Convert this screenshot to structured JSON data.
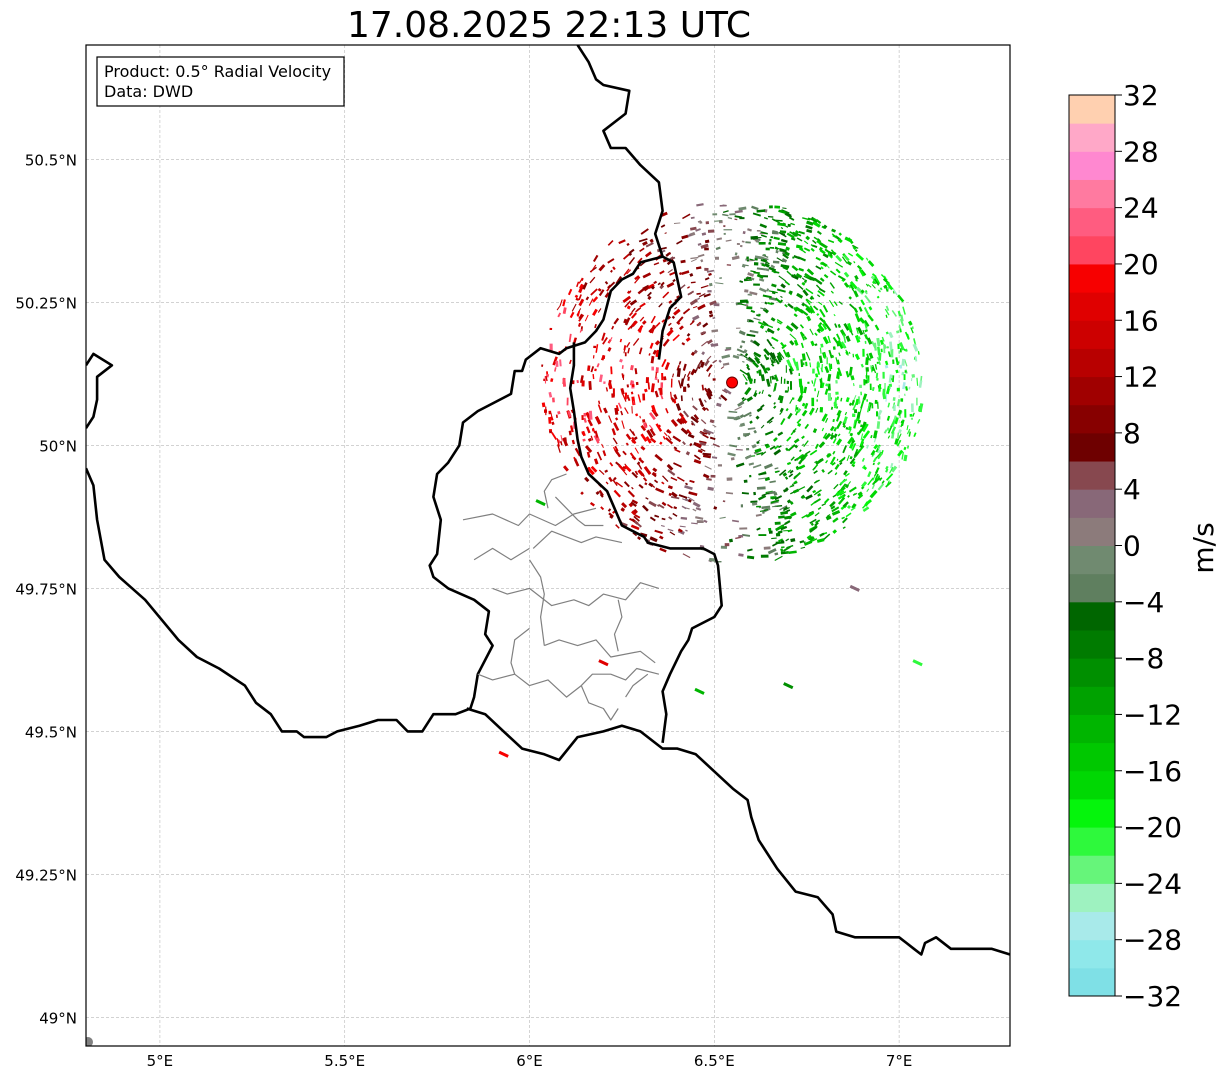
{
  "title": "17.08.2025 22:13 UTC",
  "info_box": {
    "line1": "Product: 0.5° Radial Velocity",
    "line2": "Data: DWD"
  },
  "map": {
    "lon_range": [
      4.8,
      7.3
    ],
    "lat_range": [
      48.95,
      50.7
    ],
    "lon_ticks": [
      {
        "value": 5.0,
        "label": "5°E"
      },
      {
        "value": 5.5,
        "label": "5.5°E"
      },
      {
        "value": 6.0,
        "label": "6°E"
      },
      {
        "value": 6.5,
        "label": "6.5°E"
      },
      {
        "value": 7.0,
        "label": "7°E"
      }
    ],
    "lat_ticks": [
      {
        "value": 50.5,
        "label": "50.5°N"
      },
      {
        "value": 50.25,
        "label": "50.25°N"
      },
      {
        "value": 50.0,
        "label": "50°N"
      },
      {
        "value": 49.75,
        "label": "49.75°N"
      },
      {
        "value": 49.5,
        "label": "49.5°N"
      },
      {
        "value": 49.25,
        "label": "49.25°N"
      },
      {
        "value": 49.0,
        "label": "49°N"
      }
    ],
    "grid": true,
    "radar_site": {
      "lon": 6.548,
      "lat": 50.11
    },
    "borders": [
      [
        [
          6.13,
          50.7
        ],
        [
          6.16,
          50.67
        ],
        [
          6.18,
          50.64
        ],
        [
          6.2,
          50.63
        ],
        [
          6.27,
          50.62
        ],
        [
          6.26,
          50.58
        ],
        [
          6.2,
          50.55
        ],
        [
          6.22,
          50.52
        ],
        [
          6.26,
          50.52
        ],
        [
          6.3,
          50.49
        ],
        [
          6.35,
          50.46
        ],
        [
          6.36,
          50.41
        ],
        [
          6.34,
          50.37
        ],
        [
          6.36,
          50.33
        ],
        [
          6.3,
          50.32
        ],
        [
          6.28,
          50.3
        ],
        [
          6.25,
          50.29
        ],
        [
          6.22,
          50.27
        ],
        [
          6.2,
          50.22
        ],
        [
          6.18,
          50.2
        ],
        [
          6.15,
          50.18
        ],
        [
          6.1,
          50.17
        ],
        [
          6.08,
          50.16
        ],
        [
          6.03,
          50.17
        ],
        [
          5.99,
          50.15
        ],
        [
          5.98,
          50.13
        ],
        [
          5.96,
          50.13
        ],
        [
          5.95,
          50.09
        ],
        [
          5.89,
          50.07
        ],
        [
          5.86,
          50.06
        ],
        [
          5.82,
          50.04
        ],
        [
          5.81,
          50.0
        ],
        [
          5.78,
          49.97
        ],
        [
          5.75,
          49.95
        ],
        [
          5.74,
          49.91
        ],
        [
          5.76,
          49.87
        ],
        [
          5.75,
          49.81
        ],
        [
          5.73,
          49.79
        ],
        [
          5.74,
          49.77
        ],
        [
          5.78,
          49.75
        ],
        [
          5.85,
          49.73
        ],
        [
          5.89,
          49.71
        ],
        [
          5.88,
          49.67
        ],
        [
          5.9,
          49.65
        ],
        [
          5.86,
          49.6
        ],
        [
          5.85,
          49.56
        ],
        [
          5.84,
          49.54
        ],
        [
          5.8,
          49.53
        ],
        [
          5.74,
          49.53
        ],
        [
          5.71,
          49.5
        ],
        [
          5.67,
          49.5
        ],
        [
          5.64,
          49.52
        ],
        [
          5.59,
          49.52
        ],
        [
          5.54,
          49.51
        ],
        [
          5.48,
          49.5
        ],
        [
          5.45,
          49.49
        ],
        [
          5.42,
          49.49
        ],
        [
          5.39,
          49.49
        ],
        [
          5.37,
          49.5
        ],
        [
          5.33,
          49.5
        ],
        [
          5.3,
          49.53
        ],
        [
          5.26,
          49.55
        ],
        [
          5.23,
          49.58
        ],
        [
          5.16,
          49.61
        ],
        [
          5.1,
          49.63
        ],
        [
          5.05,
          49.66
        ],
        [
          4.96,
          49.73
        ],
        [
          4.89,
          49.77
        ],
        [
          4.85,
          49.8
        ],
        [
          4.83,
          49.87
        ],
        [
          4.82,
          49.93
        ],
        [
          4.8,
          49.96
        ]
      ],
      [
        [
          4.8,
          50.14
        ],
        [
          4.82,
          50.16
        ],
        [
          4.87,
          50.14
        ],
        [
          4.83,
          50.12
        ],
        [
          4.83,
          50.08
        ],
        [
          4.82,
          50.05
        ],
        [
          4.8,
          50.03
        ]
      ],
      [
        [
          5.83,
          49.54
        ],
        [
          5.88,
          49.53
        ],
        [
          5.93,
          49.5
        ],
        [
          5.98,
          49.47
        ],
        [
          6.04,
          49.46
        ],
        [
          6.08,
          49.45
        ],
        [
          6.13,
          49.49
        ],
        [
          6.2,
          49.5
        ],
        [
          6.25,
          49.51
        ],
        [
          6.3,
          49.5
        ],
        [
          6.36,
          49.47
        ],
        [
          6.4,
          49.47
        ],
        [
          6.45,
          49.46
        ],
        [
          6.5,
          49.43
        ],
        [
          6.55,
          49.4
        ],
        [
          6.59,
          49.38
        ],
        [
          6.6,
          49.35
        ],
        [
          6.62,
          49.31
        ],
        [
          6.67,
          49.26
        ],
        [
          6.72,
          49.22
        ],
        [
          6.78,
          49.21
        ],
        [
          6.82,
          49.18
        ],
        [
          6.83,
          49.15
        ],
        [
          6.88,
          49.14
        ],
        [
          6.92,
          49.14
        ],
        [
          6.95,
          49.14
        ],
        [
          7.0,
          49.14
        ],
        [
          7.02,
          49.13
        ],
        [
          7.04,
          49.12
        ],
        [
          7.06,
          49.11
        ],
        [
          7.07,
          49.13
        ],
        [
          7.1,
          49.14
        ],
        [
          7.14,
          49.12
        ],
        [
          7.2,
          49.12
        ],
        [
          7.25,
          49.12
        ],
        [
          7.3,
          49.11
        ]
      ],
      [
        [
          6.36,
          50.33
        ],
        [
          6.39,
          50.32
        ],
        [
          6.41,
          50.26
        ],
        [
          6.38,
          50.24
        ],
        [
          6.36,
          50.2
        ],
        [
          6.35,
          50.15
        ]
      ],
      [
        [
          6.12,
          50.18
        ],
        [
          6.12,
          50.14
        ],
        [
          6.11,
          50.1
        ],
        [
          6.12,
          50.06
        ],
        [
          6.13,
          50.01
        ],
        [
          6.14,
          49.98
        ],
        [
          6.16,
          49.95
        ],
        [
          6.21,
          49.92
        ],
        [
          6.23,
          49.89
        ],
        [
          6.25,
          49.86
        ],
        [
          6.31,
          49.84
        ],
        [
          6.32,
          49.83
        ],
        [
          6.38,
          49.82
        ],
        [
          6.47,
          49.82
        ],
        [
          6.5,
          49.81
        ],
        [
          6.51,
          49.79
        ],
        [
          6.52,
          49.72
        ],
        [
          6.5,
          49.7
        ],
        [
          6.44,
          49.68
        ],
        [
          6.43,
          49.66
        ],
        [
          6.41,
          49.64
        ],
        [
          6.38,
          49.6
        ],
        [
          6.36,
          49.57
        ],
        [
          6.37,
          49.53
        ],
        [
          6.36,
          49.48
        ]
      ]
    ],
    "internal_borders": [
      [
        [
          6.07,
          49.91
        ],
        [
          6.1,
          49.89
        ],
        [
          6.13,
          49.87
        ],
        [
          6.15,
          49.86
        ],
        [
          6.2,
          49.86
        ]
      ],
      [
        [
          5.82,
          49.87
        ],
        [
          5.9,
          49.88
        ],
        [
          5.97,
          49.86
        ],
        [
          6.0,
          49.88
        ],
        [
          6.07,
          49.86
        ],
        [
          6.12,
          49.88
        ],
        [
          6.18,
          49.89
        ]
      ],
      [
        [
          6.01,
          49.82
        ],
        [
          6.06,
          49.85
        ],
        [
          6.1,
          49.84
        ],
        [
          6.14,
          49.83
        ],
        [
          6.18,
          49.84
        ],
        [
          6.25,
          49.83
        ]
      ],
      [
        [
          6.0,
          49.8
        ],
        [
          6.03,
          49.77
        ],
        [
          6.04,
          49.74
        ],
        [
          6.03,
          49.7
        ],
        [
          6.04,
          49.65
        ]
      ],
      [
        [
          5.9,
          49.75
        ],
        [
          5.94,
          49.74
        ],
        [
          6.0,
          49.75
        ],
        [
          6.06,
          49.72
        ],
        [
          6.12,
          49.73
        ],
        [
          6.16,
          49.72
        ],
        [
          6.2,
          49.74
        ],
        [
          6.26,
          49.73
        ],
        [
          6.3,
          49.76
        ],
        [
          6.35,
          49.75
        ]
      ],
      [
        [
          6.04,
          49.65
        ],
        [
          6.08,
          49.66
        ],
        [
          6.13,
          49.65
        ],
        [
          6.18,
          49.66
        ],
        [
          6.22,
          49.63
        ],
        [
          6.3,
          49.64
        ],
        [
          6.34,
          49.62
        ]
      ],
      [
        [
          5.86,
          49.6
        ],
        [
          5.9,
          49.59
        ],
        [
          5.96,
          49.6
        ],
        [
          6.0,
          49.58
        ],
        [
          6.05,
          49.59
        ],
        [
          6.1,
          49.56
        ],
        [
          6.14,
          49.58
        ]
      ],
      [
        [
          6.14,
          49.58
        ],
        [
          6.16,
          49.55
        ],
        [
          6.2,
          49.54
        ],
        [
          6.22,
          49.52
        ],
        [
          6.24,
          49.54
        ]
      ],
      [
        [
          6.14,
          49.58
        ],
        [
          6.17,
          49.6
        ],
        [
          6.22,
          49.6
        ],
        [
          6.26,
          49.59
        ],
        [
          6.29,
          49.61
        ],
        [
          6.35,
          49.6
        ]
      ],
      [
        [
          5.96,
          49.6
        ],
        [
          5.95,
          49.62
        ],
        [
          5.96,
          49.66
        ],
        [
          6.0,
          49.68
        ]
      ],
      [
        [
          6.24,
          49.73
        ],
        [
          6.25,
          49.7
        ],
        [
          6.23,
          49.67
        ],
        [
          6.24,
          49.64
        ]
      ],
      [
        [
          6.26,
          49.56
        ],
        [
          6.28,
          49.58
        ],
        [
          6.32,
          49.6
        ]
      ],
      [
        [
          5.85,
          49.8
        ],
        [
          5.9,
          49.82
        ],
        [
          5.95,
          49.8
        ],
        [
          6.0,
          49.82
        ]
      ],
      [
        [
          6.1,
          49.95
        ],
        [
          6.06,
          49.94
        ],
        [
          6.04,
          49.92
        ],
        [
          6.05,
          49.89
        ]
      ]
    ]
  },
  "colorbar": {
    "label": "m/s",
    "min": -32,
    "max": 32,
    "ticks": [
      {
        "value": 32,
        "label": "32"
      },
      {
        "value": 28,
        "label": "28"
      },
      {
        "value": 24,
        "label": "24"
      },
      {
        "value": 20,
        "label": "20"
      },
      {
        "value": 16,
        "label": "16"
      },
      {
        "value": 12,
        "label": "12"
      },
      {
        "value": 8,
        "label": "8"
      },
      {
        "value": 4,
        "label": "4"
      },
      {
        "value": 0,
        "label": "0"
      },
      {
        "value": -4,
        "label": "−4"
      },
      {
        "value": -8,
        "label": "−8"
      },
      {
        "value": -12,
        "label": "−12"
      },
      {
        "value": -16,
        "label": "−16"
      },
      {
        "value": -20,
        "label": "−20"
      },
      {
        "value": -24,
        "label": "−24"
      },
      {
        "value": -28,
        "label": "−28"
      },
      {
        "value": -32,
        "label": "−32"
      }
    ],
    "segments": [
      {
        "from": -32,
        "to": -30,
        "color": "#7fe0e6"
      },
      {
        "from": -30,
        "to": -28,
        "color": "#8fe8ea"
      },
      {
        "from": -28,
        "to": -26,
        "color": "#a8eaea"
      },
      {
        "from": -26,
        "to": -24,
        "color": "#9ef2c0"
      },
      {
        "from": -24,
        "to": -22,
        "color": "#66f57a"
      },
      {
        "from": -22,
        "to": -20,
        "color": "#2ef93c"
      },
      {
        "from": -20,
        "to": -18,
        "color": "#05f50c"
      },
      {
        "from": -18,
        "to": -16,
        "color": "#00d803"
      },
      {
        "from": -16,
        "to": -14,
        "color": "#00c800"
      },
      {
        "from": -14,
        "to": -12,
        "color": "#00b500"
      },
      {
        "from": -12,
        "to": -10,
        "color": "#00a200"
      },
      {
        "from": -10,
        "to": -8,
        "color": "#008f00"
      },
      {
        "from": -8,
        "to": -6,
        "color": "#007b00"
      },
      {
        "from": -6,
        "to": -4,
        "color": "#006600"
      },
      {
        "from": -4,
        "to": -2,
        "color": "#5f7f5f"
      },
      {
        "from": -2,
        "to": 0,
        "color": "#708a70"
      },
      {
        "from": 0,
        "to": 2,
        "color": "#8c7b7b"
      },
      {
        "from": 2,
        "to": 4,
        "color": "#886878"
      },
      {
        "from": 4,
        "to": 6,
        "color": "#87484f"
      },
      {
        "from": 6,
        "to": 8,
        "color": "#6e0000"
      },
      {
        "from": 8,
        "to": 10,
        "color": "#870000"
      },
      {
        "from": 10,
        "to": 12,
        "color": "#a00000"
      },
      {
        "from": 12,
        "to": 14,
        "color": "#b80000"
      },
      {
        "from": 14,
        "to": 16,
        "color": "#cd0000"
      },
      {
        "from": 16,
        "to": 18,
        "color": "#e00000"
      },
      {
        "from": 18,
        "to": 20,
        "color": "#f70000"
      },
      {
        "from": 20,
        "to": 22,
        "color": "#ff4560"
      },
      {
        "from": 22,
        "to": 24,
        "color": "#ff5c80"
      },
      {
        "from": 24,
        "to": 26,
        "color": "#ff7aa0"
      },
      {
        "from": 26,
        "to": 28,
        "color": "#ff88d0"
      },
      {
        "from": 28,
        "to": 30,
        "color": "#ffa8c8"
      },
      {
        "from": 30,
        "to": 32,
        "color": "#ffd0b0"
      }
    ]
  }
}
